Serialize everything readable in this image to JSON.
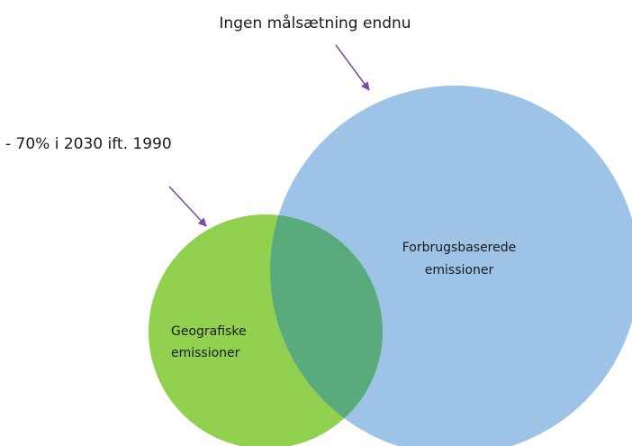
{
  "notes": {
    "top": "Ingen målsætning endnu",
    "left": "- 70% i 2030 ift. 1990"
  },
  "circles": {
    "geographic": {
      "lines": [
        "Geografiske",
        "emissioner"
      ]
    },
    "consumption": {
      "lines": [
        "Forbrugsbaserede",
        "emissioner"
      ]
    }
  }
}
